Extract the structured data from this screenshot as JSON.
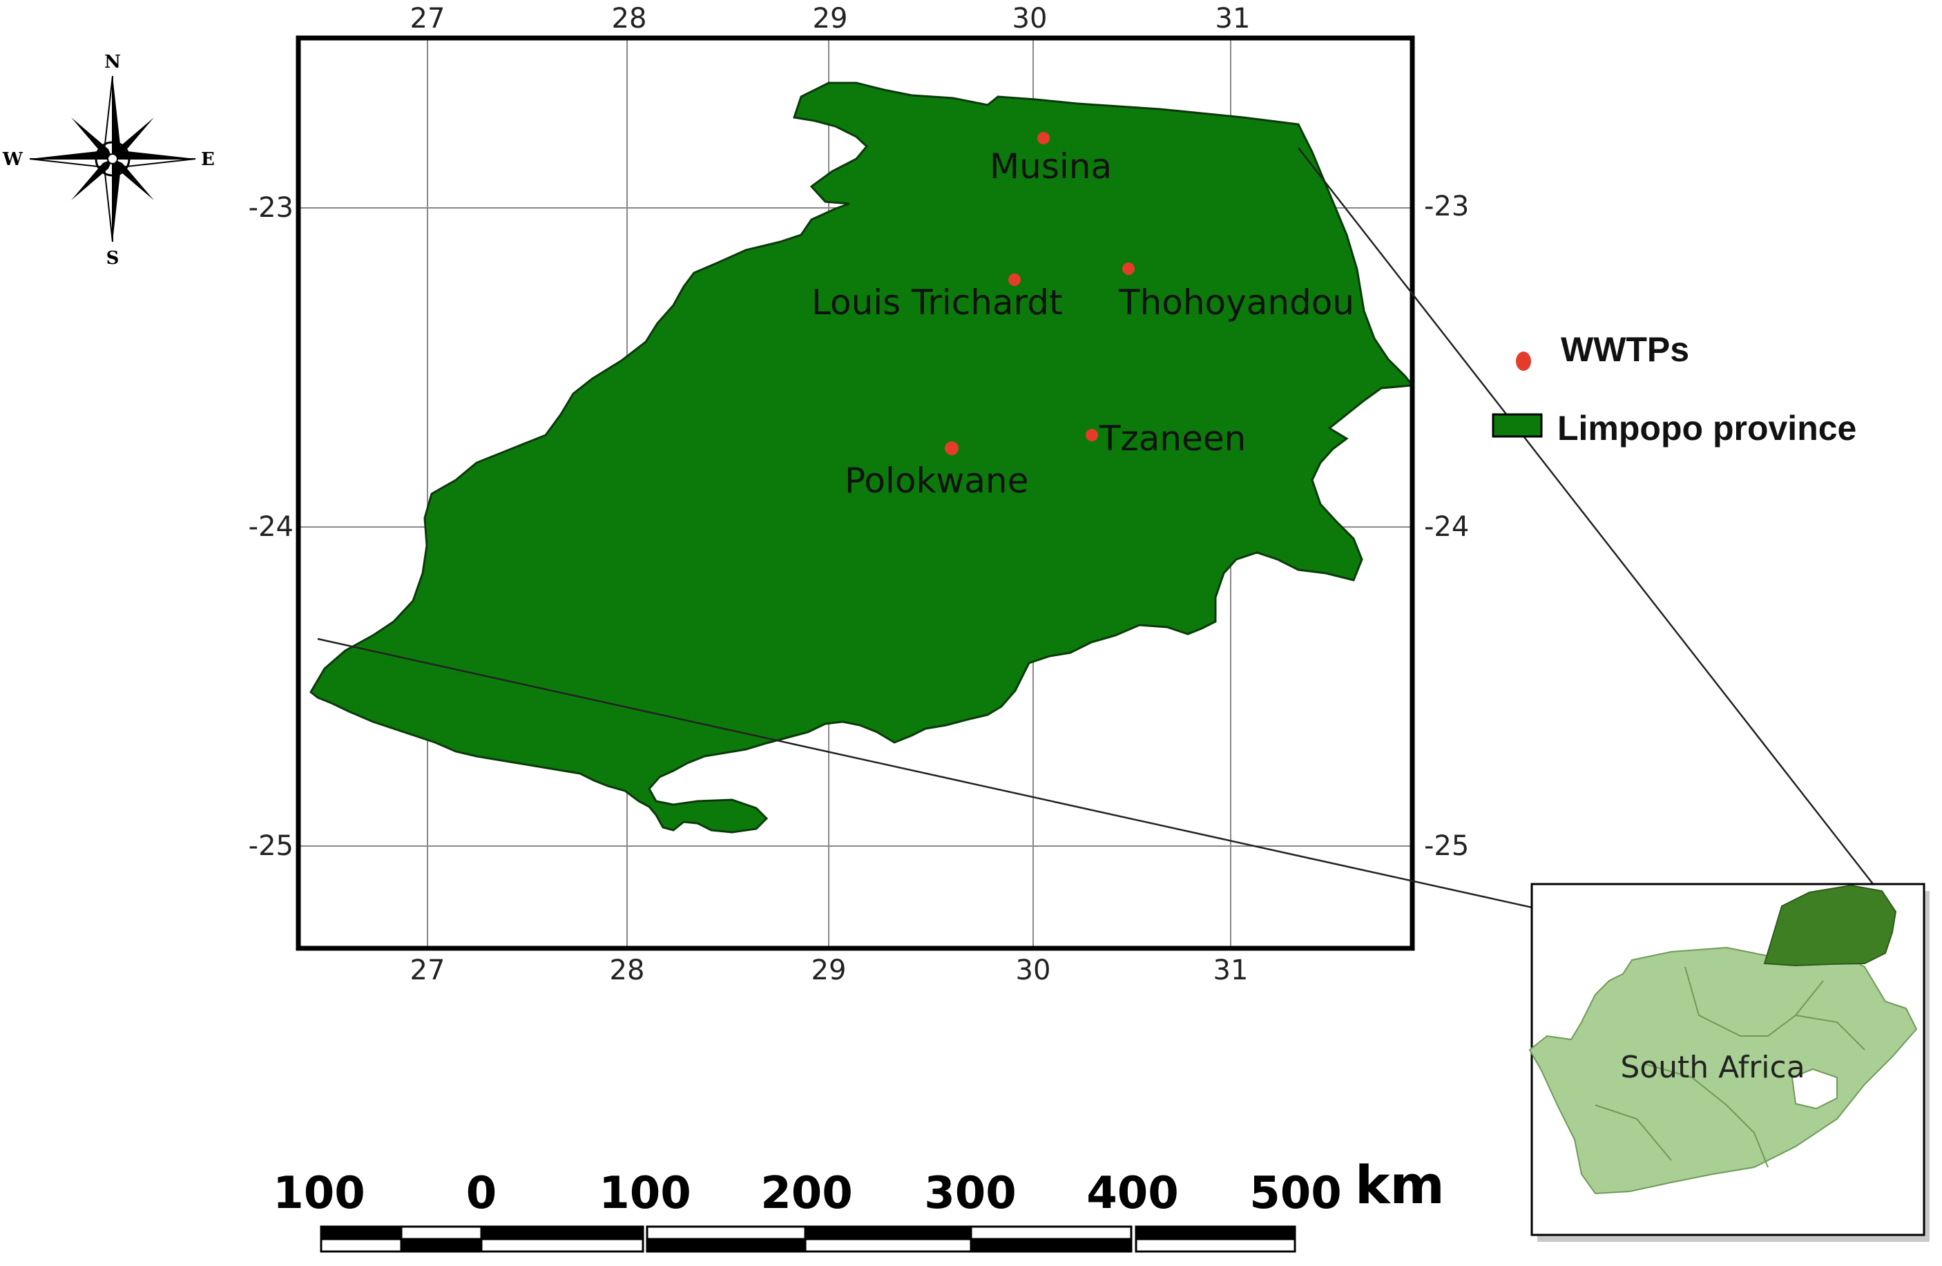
{
  "map": {
    "lon_ticks": [
      "27",
      "28",
      "29",
      "30",
      "31"
    ],
    "lat_ticks": [
      "-23",
      "-24",
      "-25"
    ],
    "towns": [
      {
        "name": "Musina",
        "lon": 30.05,
        "lat": -22.72
      },
      {
        "name": "Louis Trichardt",
        "lon": 29.92,
        "lat": -23.22
      },
      {
        "name": "Thohoyandou",
        "lon": 30.48,
        "lat": -23.18
      },
      {
        "name": "Tzaneen",
        "lon": 30.3,
        "lat": -23.71
      },
      {
        "name": "Polokwane",
        "lon": 29.6,
        "lat": -23.76
      }
    ]
  },
  "compass": {
    "n": "N",
    "s": "S",
    "e": "E",
    "w": "W"
  },
  "legend": {
    "point_label": "WWTPs",
    "area_label": "Limpopo province"
  },
  "scale": {
    "labels": [
      "100",
      "0",
      "100",
      "200",
      "300",
      "400",
      "500"
    ],
    "unit": "km"
  },
  "inset": {
    "label": "South Africa"
  },
  "colors": {
    "province": "#0b7a0b",
    "wwtp": "#e53b2c",
    "inset_country": "#a9cf94",
    "inset_limpopo": "#3f7f24"
  }
}
